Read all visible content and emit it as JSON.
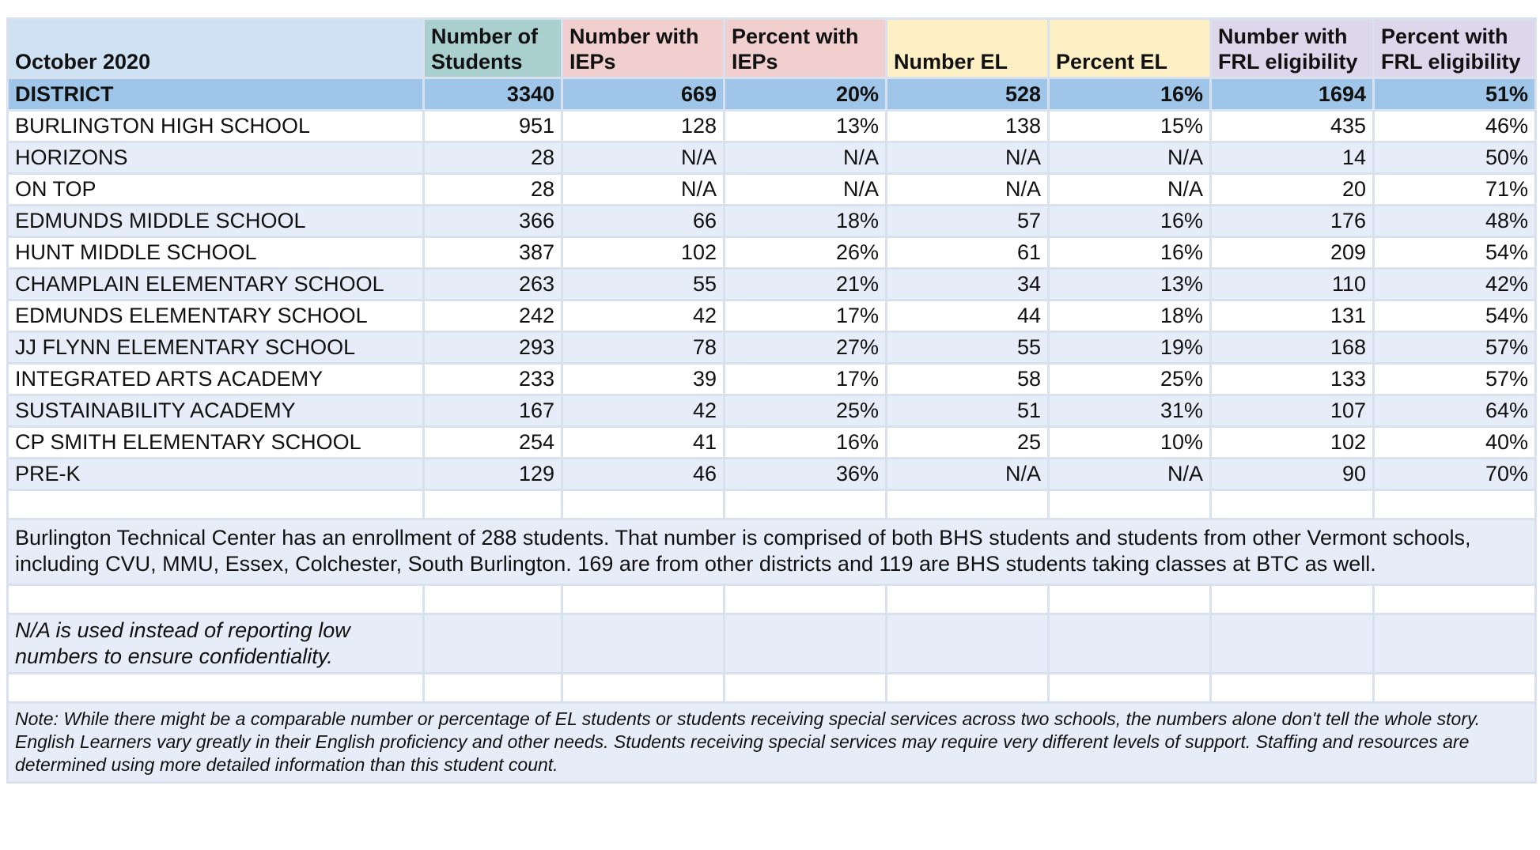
{
  "table": {
    "headers": {
      "label": "October 2020",
      "students": "Number of Students",
      "num_iep": "Number with IEPs",
      "pct_iep": "Percent with IEPs",
      "num_el": "Number EL",
      "pct_el": "Percent EL",
      "num_frl": "Number with FRL eligibility",
      "pct_frl": "Percent with FRL eligibility"
    },
    "colors": {
      "label_header": "#cfe2f3",
      "students_header": "#a9cfcf",
      "iep_header": "#f2cfcf",
      "el_header": "#fdf0c4",
      "frl_header": "#dcd7ea",
      "district_row": "#9fc5e8",
      "band_row": "#e6edf8"
    },
    "district": [
      "DISTRICT",
      "3340",
      "669",
      "20%",
      "528",
      "16%",
      "1694",
      "51%"
    ],
    "rows": [
      [
        "BURLINGTON HIGH SCHOOL",
        "951",
        "128",
        "13%",
        "138",
        "15%",
        "435",
        "46%"
      ],
      [
        "HORIZONS",
        "28",
        "N/A",
        "N/A",
        "N/A",
        "N/A",
        "14",
        "50%"
      ],
      [
        "ON TOP",
        "28",
        "N/A",
        "N/A",
        "N/A",
        "N/A",
        "20",
        "71%"
      ],
      [
        "EDMUNDS MIDDLE SCHOOL",
        "366",
        "66",
        "18%",
        "57",
        "16%",
        "176",
        "48%"
      ],
      [
        "HUNT MIDDLE SCHOOL",
        "387",
        "102",
        "26%",
        "61",
        "16%",
        "209",
        "54%"
      ],
      [
        "CHAMPLAIN ELEMENTARY SCHOOL",
        "263",
        "55",
        "21%",
        "34",
        "13%",
        "110",
        "42%"
      ],
      [
        "EDMUNDS ELEMENTARY SCHOOL",
        "242",
        "42",
        "17%",
        "44",
        "18%",
        "131",
        "54%"
      ],
      [
        "JJ FLYNN ELEMENTARY SCHOOL",
        "293",
        "78",
        "27%",
        "55",
        "19%",
        "168",
        "57%"
      ],
      [
        "INTEGRATED ARTS ACADEMY",
        "233",
        "39",
        "17%",
        "58",
        "25%",
        "133",
        "57%"
      ],
      [
        "SUSTAINABILITY ACADEMY",
        "167",
        "42",
        "25%",
        "51",
        "31%",
        "107",
        "64%"
      ],
      [
        "CP SMITH ELEMENTARY SCHOOL",
        "254",
        "41",
        "16%",
        "25",
        "10%",
        "102",
        "40%"
      ],
      [
        "PRE-K",
        "129",
        "46",
        "36%",
        "N/A",
        "N/A",
        "90",
        "70%"
      ]
    ],
    "btc_note": "Burlington Technical Center has an enrollment of 288 students. That number is comprised of both BHS students and students from other Vermont schools, including CVU, MMU, Essex, Colchester, South Burlington. 169 are from other districts and 119 are BHS students taking classes at BTC as well.",
    "na_note": "N/A is used instead of reporting low numbers to ensure confidentiality.",
    "footnote": "Note: While there might be a comparable number or percentage of EL students or students receiving special services across two schools, the numbers alone don't tell the whole story. English Learners vary greatly in their English proficiency and other needs. Students receiving special services may require very different levels of support. Staffing and resources are determined using more detailed information than this student count."
  }
}
